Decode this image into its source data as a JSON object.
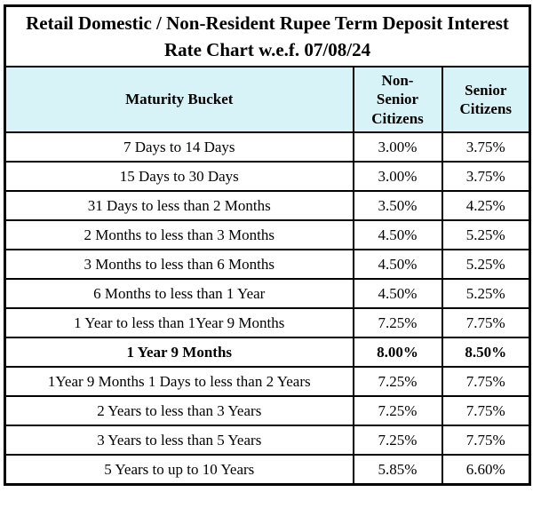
{
  "title": "Retail Domestic / Non-Resident Rupee Term Deposit Interest Rate Chart w.e.f. 07/08/24",
  "columns": {
    "maturity_bucket": "Maturity Bucket",
    "non_senior": "Non-Senior Citizens",
    "senior": "Senior Citizens"
  },
  "colors": {
    "header_background": "#d8f3f8",
    "row_background": "#ffffff",
    "border": "#000000",
    "text": "#000000"
  },
  "rows": [
    {
      "bucket": "7 Days to 14 Days",
      "non_senior": "3.00%",
      "senior": "3.75%",
      "bold": false
    },
    {
      "bucket": "15 Days to 30 Days",
      "non_senior": "3.00%",
      "senior": "3.75%",
      "bold": false
    },
    {
      "bucket": "31 Days to less than 2 Months",
      "non_senior": "3.50%",
      "senior": "4.25%",
      "bold": false
    },
    {
      "bucket": "2 Months to less than 3 Months",
      "non_senior": "4.50%",
      "senior": "5.25%",
      "bold": false
    },
    {
      "bucket": "3 Months to less than 6 Months",
      "non_senior": "4.50%",
      "senior": "5.25%",
      "bold": false
    },
    {
      "bucket": "6 Months to less than 1 Year",
      "non_senior": "4.50%",
      "senior": "5.25%",
      "bold": false
    },
    {
      "bucket": "1 Year to less than 1Year 9 Months",
      "non_senior": "7.25%",
      "senior": "7.75%",
      "bold": false
    },
    {
      "bucket": "1 Year 9 Months",
      "non_senior": "8.00%",
      "senior": "8.50%",
      "bold": true
    },
    {
      "bucket": "1Year 9 Months 1 Days to less than 2 Years",
      "non_senior": "7.25%",
      "senior": "7.75%",
      "bold": false
    },
    {
      "bucket": "2 Years to less than 3 Years",
      "non_senior": "7.25%",
      "senior": "7.75%",
      "bold": false
    },
    {
      "bucket": "3 Years to less than 5 Years",
      "non_senior": "7.25%",
      "senior": "7.75%",
      "bold": false
    },
    {
      "bucket": "5 Years to up to 10 Years",
      "non_senior": "5.85%",
      "senior": "6.60%",
      "bold": false
    }
  ]
}
